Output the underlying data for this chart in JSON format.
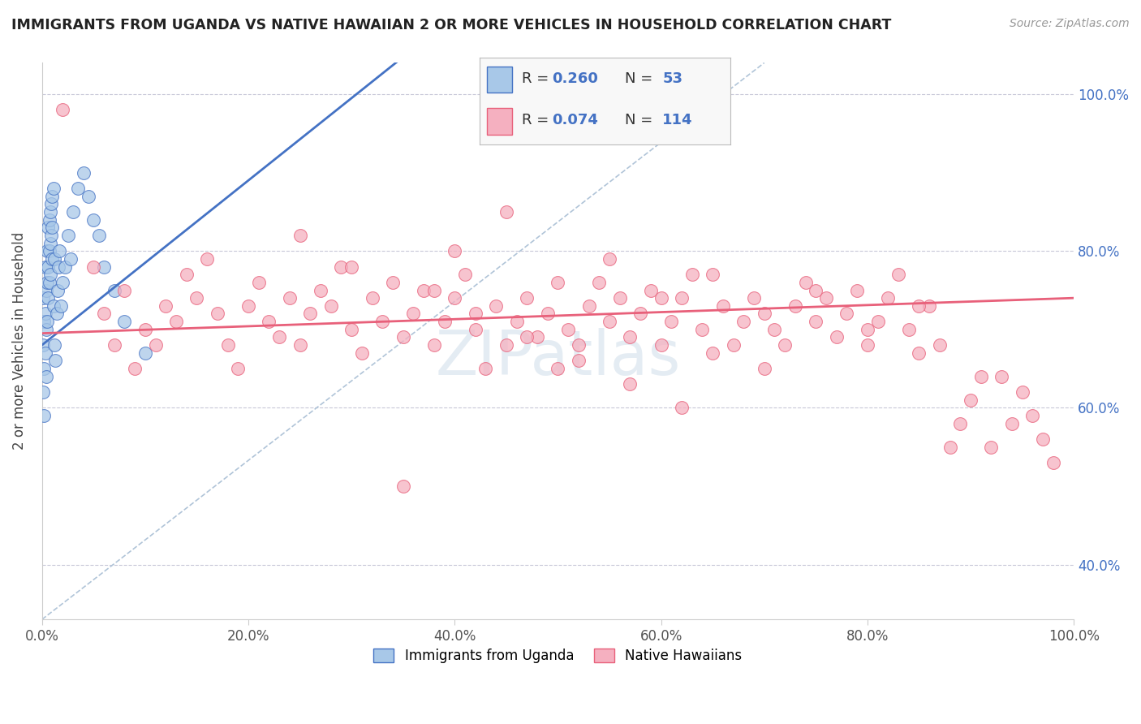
{
  "title": "IMMIGRANTS FROM UGANDA VS NATIVE HAWAIIAN 2 OR MORE VEHICLES IN HOUSEHOLD CORRELATION CHART",
  "source": "Source: ZipAtlas.com",
  "ylabel": "2 or more Vehicles in Household",
  "r_uganda": 0.26,
  "n_uganda": 53,
  "r_hawaiian": 0.074,
  "n_hawaiian": 114,
  "color_uganda": "#a8c8e8",
  "color_hawaiian": "#f5b0c0",
  "line_color_uganda": "#4472c4",
  "line_color_hawaiian": "#e8607a",
  "legend_label_uganda": "Immigrants from Uganda",
  "legend_label_hawaiian": "Native Hawaiians",
  "xlim": [
    0,
    1.0
  ],
  "ylim": [
    0.33,
    1.04
  ],
  "y_ticks": [
    0.4,
    0.6,
    0.8,
    1.0
  ],
  "y_tick_labels": [
    "40.0%",
    "60.0%",
    "80.0%",
    "100.0%"
  ],
  "x_ticks": [
    0.0,
    0.2,
    0.4,
    0.6,
    0.8,
    1.0
  ],
  "x_tick_labels": [
    "0.0%",
    "20.0%",
    "40.0%",
    "60.0%",
    "80.0%",
    "100.0%"
  ],
  "uganda_x": [
    0.001,
    0.001,
    0.001,
    0.002,
    0.002,
    0.002,
    0.003,
    0.003,
    0.003,
    0.004,
    0.004,
    0.004,
    0.005,
    0.005,
    0.005,
    0.006,
    0.006,
    0.006,
    0.007,
    0.007,
    0.007,
    0.008,
    0.008,
    0.008,
    0.009,
    0.009,
    0.01,
    0.01,
    0.01,
    0.011,
    0.011,
    0.012,
    0.012,
    0.013,
    0.014,
    0.015,
    0.016,
    0.017,
    0.018,
    0.02,
    0.022,
    0.025,
    0.028,
    0.03,
    0.035,
    0.04,
    0.045,
    0.05,
    0.055,
    0.06,
    0.07,
    0.08,
    0.1
  ],
  "uganda_y": [
    0.74,
    0.68,
    0.62,
    0.71,
    0.65,
    0.59,
    0.78,
    0.72,
    0.67,
    0.75,
    0.7,
    0.64,
    0.8,
    0.76,
    0.71,
    0.83,
    0.78,
    0.74,
    0.84,
    0.8,
    0.76,
    0.85,
    0.81,
    0.77,
    0.86,
    0.82,
    0.87,
    0.83,
    0.79,
    0.88,
    0.73,
    0.79,
    0.68,
    0.66,
    0.72,
    0.75,
    0.78,
    0.8,
    0.73,
    0.76,
    0.78,
    0.82,
    0.79,
    0.85,
    0.88,
    0.9,
    0.87,
    0.84,
    0.82,
    0.78,
    0.75,
    0.71,
    0.67
  ],
  "hawaiian_x": [
    0.02,
    0.05,
    0.06,
    0.07,
    0.08,
    0.09,
    0.1,
    0.11,
    0.12,
    0.13,
    0.14,
    0.15,
    0.16,
    0.17,
    0.18,
    0.19,
    0.2,
    0.21,
    0.22,
    0.23,
    0.24,
    0.25,
    0.26,
    0.27,
    0.28,
    0.29,
    0.3,
    0.31,
    0.32,
    0.33,
    0.34,
    0.35,
    0.36,
    0.37,
    0.38,
    0.39,
    0.4,
    0.41,
    0.42,
    0.43,
    0.44,
    0.45,
    0.46,
    0.47,
    0.48,
    0.49,
    0.5,
    0.51,
    0.52,
    0.53,
    0.54,
    0.55,
    0.56,
    0.57,
    0.58,
    0.59,
    0.6,
    0.61,
    0.62,
    0.63,
    0.64,
    0.65,
    0.66,
    0.67,
    0.68,
    0.69,
    0.7,
    0.71,
    0.72,
    0.73,
    0.74,
    0.75,
    0.76,
    0.77,
    0.78,
    0.79,
    0.8,
    0.81,
    0.82,
    0.83,
    0.84,
    0.85,
    0.86,
    0.87,
    0.88,
    0.89,
    0.9,
    0.91,
    0.92,
    0.93,
    0.94,
    0.95,
    0.96,
    0.97,
    0.98,
    0.35,
    0.4,
    0.45,
    0.5,
    0.55,
    0.6,
    0.65,
    0.7,
    0.75,
    0.8,
    0.85,
    0.25,
    0.3,
    0.38,
    0.42,
    0.47,
    0.52,
    0.57,
    0.62
  ],
  "hawaiian_y": [
    0.98,
    0.78,
    0.72,
    0.68,
    0.75,
    0.65,
    0.7,
    0.68,
    0.73,
    0.71,
    0.77,
    0.74,
    0.79,
    0.72,
    0.68,
    0.65,
    0.73,
    0.76,
    0.71,
    0.69,
    0.74,
    0.68,
    0.72,
    0.75,
    0.73,
    0.78,
    0.7,
    0.67,
    0.74,
    0.71,
    0.76,
    0.69,
    0.72,
    0.75,
    0.68,
    0.71,
    0.74,
    0.77,
    0.7,
    0.65,
    0.73,
    0.68,
    0.71,
    0.74,
    0.69,
    0.72,
    0.65,
    0.7,
    0.68,
    0.73,
    0.76,
    0.71,
    0.74,
    0.69,
    0.72,
    0.75,
    0.68,
    0.71,
    0.74,
    0.77,
    0.7,
    0.67,
    0.73,
    0.68,
    0.71,
    0.74,
    0.65,
    0.7,
    0.68,
    0.73,
    0.76,
    0.71,
    0.74,
    0.69,
    0.72,
    0.75,
    0.68,
    0.71,
    0.74,
    0.77,
    0.7,
    0.67,
    0.73,
    0.68,
    0.55,
    0.58,
    0.61,
    0.64,
    0.55,
    0.64,
    0.58,
    0.62,
    0.59,
    0.56,
    0.53,
    0.5,
    0.8,
    0.85,
    0.76,
    0.79,
    0.74,
    0.77,
    0.72,
    0.75,
    0.7,
    0.73,
    0.82,
    0.78,
    0.75,
    0.72,
    0.69,
    0.66,
    0.63,
    0.6
  ]
}
